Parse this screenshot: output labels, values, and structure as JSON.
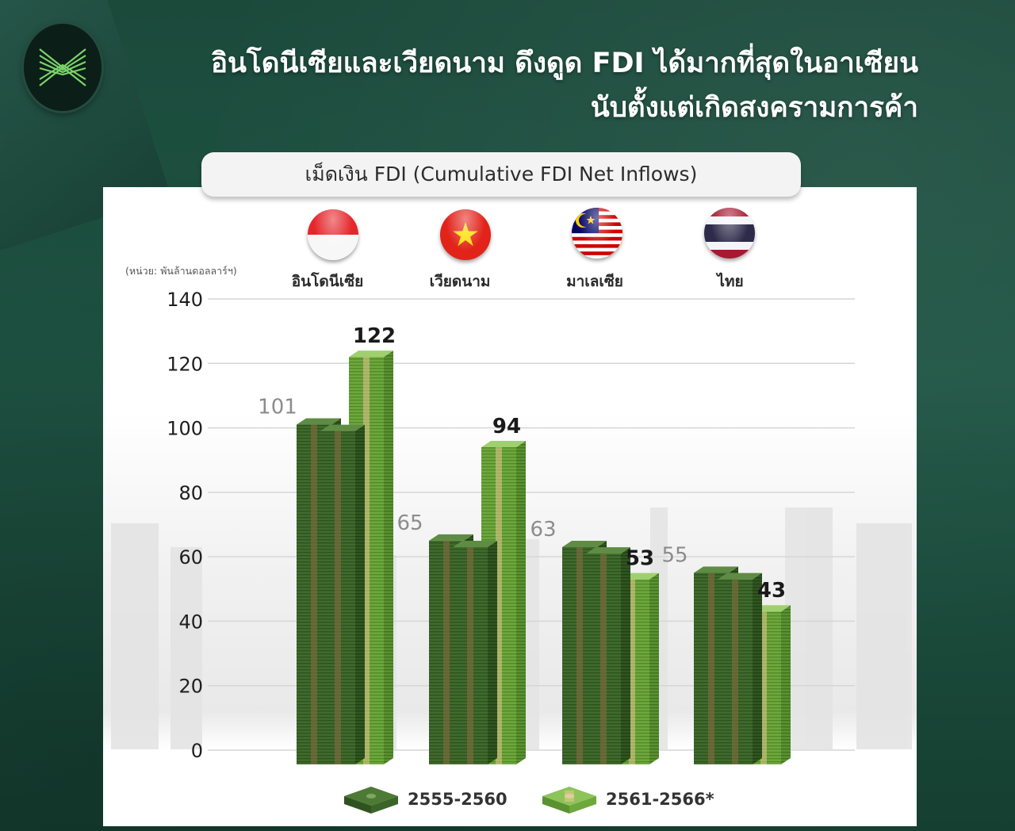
{
  "headline": {
    "line1": "อินโดนีเซียและเวียดนาม ดึงดูด FDI ได้มากที่สุดในอาเซียน",
    "line2": "นับตั้งแต่เกิดสงครามการค้า"
  },
  "unit_label": "(หน่วย: พันล้านดอลลาร์ฯ)",
  "colors": {
    "background": "#1f5544",
    "series_dark": "#3f6b2c",
    "series_light": "#6ea83c",
    "band": "#e6c58f"
  },
  "chart_data": {
    "type": "bar",
    "title": "เม็ดเงิน FDI (Cumulative FDI Net Inflows)",
    "categories": [
      "อินโดนีเซีย",
      "เวียดนาม",
      "มาเลเซีย",
      "ไทย"
    ],
    "flags": [
      "indonesia-flag-icon",
      "vietnam-flag-icon",
      "malaysia-flag-icon",
      "thailand-flag-icon"
    ],
    "series": [
      {
        "name": "2555-2560",
        "values": [
          101,
          65,
          63,
          55
        ]
      },
      {
        "name": "2561-2566*",
        "values": [
          122,
          94,
          53,
          43
        ]
      }
    ],
    "yticks": [
      0,
      20,
      40,
      60,
      80,
      100,
      120,
      140
    ],
    "ylim": [
      0,
      140
    ],
    "grid": true,
    "legend_position": "bottom"
  }
}
